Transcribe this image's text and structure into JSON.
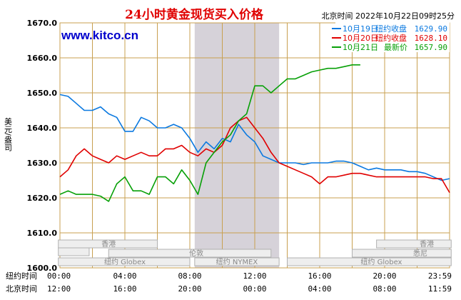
{
  "header": {
    "title": "24小时黄金现货买入价格",
    "timestamp": "北京时间 2022年10月22日09时25分",
    "watermark": "www.kitco.cn"
  },
  "axes": {
    "ylabel": "美元/盎司",
    "row1_label": "纽约时间",
    "row2_label": "北京时间"
  },
  "legend": [
    {
      "date": "10月19日",
      "label": "纽约收盘",
      "value": "1629.90",
      "color": "#0b79e0"
    },
    {
      "date": "10月20日",
      "label": "纽约收盘",
      "value": "1628.10",
      "color": "#e00000"
    },
    {
      "date": "10月21日",
      "label": "最新价",
      "value": "1657.90",
      "color": "#07a007"
    }
  ],
  "markets": {
    "hk": "香港",
    "london": "伦敦",
    "ny_globex_left": "纽约 Globex",
    "ny_nymex": "纽约 NYMEX",
    "ny_globex_right": "纽约 Globex",
    "hk_right": "香港",
    "sydney": "悉尼"
  },
  "colors": {
    "grid": "#c8a050",
    "shade": "#d6d2d9",
    "series_19": "#0b79e0",
    "series_20": "#e00000",
    "series_21": "#07a007",
    "title": "#e00000",
    "watermark": "#0000cc"
  },
  "chart_data": {
    "type": "line",
    "ylim": [
      1600,
      1670
    ],
    "yticks": [
      "1670.0",
      "1660.0",
      "1650.0",
      "1640.0",
      "1630.0",
      "1620.0",
      "1610.0",
      "1600.0"
    ],
    "xlim": [
      0,
      24
    ],
    "x_ticks_ny": [
      "00:00",
      "04:00",
      "08:00",
      "12:00",
      "16:00",
      "20:00",
      "23:59"
    ],
    "x_ticks_bj": [
      "12:00",
      "16:00",
      "20:00",
      "00:00",
      "04:00",
      "08:00",
      "11:59"
    ],
    "x_tick_hours": [
      0,
      4,
      8,
      12,
      16,
      20,
      24
    ],
    "shaded_hours": [
      8.3,
      13.5
    ],
    "series": [
      {
        "name": "10月19日",
        "color": "#0b79e0",
        "x": [
          0,
          0.5,
          1,
          1.5,
          2,
          2.5,
          3,
          3.5,
          4,
          4.5,
          5,
          5.5,
          6,
          6.5,
          7,
          7.5,
          8,
          8.5,
          9,
          9.5,
          10,
          10.5,
          11,
          11.5,
          12,
          12.5,
          13,
          13.5,
          14,
          14.5,
          15,
          15.5,
          16,
          16.5,
          17,
          17.5,
          18,
          18.5,
          19,
          19.5,
          20,
          20.5,
          21,
          21.5,
          22,
          22.5,
          23,
          23.5,
          24
        ],
        "y": [
          1649.5,
          1649,
          1647,
          1645,
          1645,
          1646,
          1644,
          1643,
          1639,
          1639,
          1643,
          1642,
          1640,
          1640,
          1641,
          1640,
          1637,
          1633,
          1636,
          1634,
          1637,
          1636,
          1641,
          1638,
          1636,
          1632,
          1631,
          1630,
          1630,
          1630,
          1629.5,
          1630,
          1630,
          1630,
          1630.5,
          1630.5,
          1630,
          1629,
          1628,
          1628.5,
          1628,
          1628,
          1628,
          1627.5,
          1627.5,
          1627,
          1626,
          1625,
          1625.5
        ]
      },
      {
        "name": "10月20日",
        "color": "#e00000",
        "x": [
          0,
          0.5,
          1,
          1.5,
          2,
          2.5,
          3,
          3.5,
          4,
          4.5,
          5,
          5.5,
          6,
          6.5,
          7,
          7.5,
          8,
          8.5,
          9,
          9.5,
          10,
          10.5,
          11,
          11.5,
          12,
          12.5,
          13,
          13.5,
          14,
          14.5,
          15,
          15.5,
          16,
          16.5,
          17,
          17.5,
          18,
          18.5,
          19,
          19.5,
          20,
          20.5,
          21,
          21.5,
          22,
          22.5,
          23,
          23.5,
          24
        ],
        "y": [
          1626,
          1628,
          1632,
          1634,
          1632,
          1631,
          1630,
          1632,
          1631,
          1632,
          1633,
          1632,
          1632,
          1634,
          1634,
          1635,
          1633,
          1632,
          1634,
          1633,
          1635,
          1640,
          1642,
          1643,
          1640,
          1637,
          1633,
          1630,
          1629,
          1628,
          1627,
          1626,
          1624,
          1626,
          1626,
          1626.5,
          1627,
          1627,
          1626.5,
          1626,
          1626,
          1626,
          1626,
          1626,
          1626,
          1626,
          1625.5,
          1625.5,
          1621.5
        ]
      },
      {
        "name": "10月21日",
        "color": "#07a007",
        "x": [
          0,
          0.5,
          1,
          1.5,
          2,
          2.5,
          3,
          3.5,
          4,
          4.5,
          5,
          5.5,
          6,
          6.5,
          7,
          7.5,
          8,
          8.5,
          9,
          9.5,
          10,
          10.5,
          11,
          11.5,
          12,
          12.5,
          13,
          13.5,
          14,
          14.5,
          15,
          15.5,
          16,
          16.5,
          17,
          17.5,
          18,
          18.5
        ],
        "y": [
          1621,
          1622,
          1621,
          1621,
          1621,
          1620.5,
          1619,
          1624,
          1626,
          1622,
          1622,
          1621,
          1626,
          1626,
          1624,
          1628,
          1625,
          1621,
          1630,
          1633,
          1636,
          1638,
          1642,
          1644,
          1652,
          1652,
          1650,
          1652,
          1654,
          1654,
          1655,
          1656,
          1656.5,
          1657,
          1657,
          1657.5,
          1658,
          1658
        ]
      }
    ]
  }
}
